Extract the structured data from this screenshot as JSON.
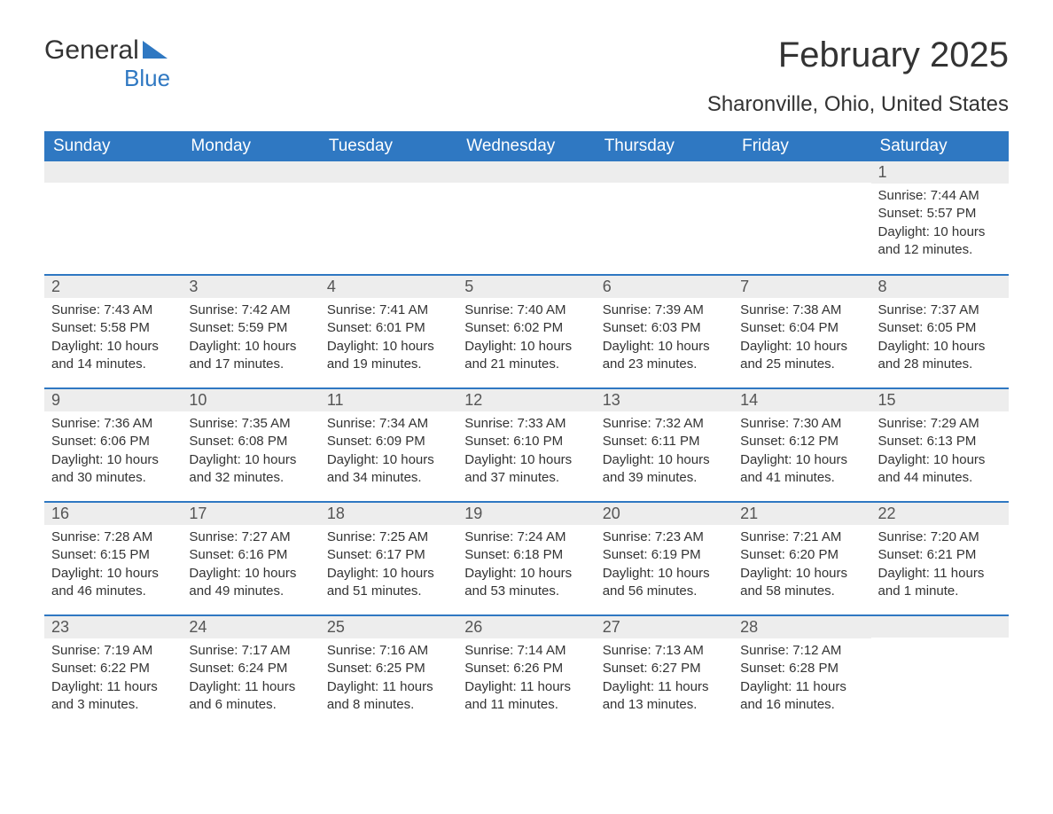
{
  "brand": {
    "part1": "General",
    "part2": "Blue"
  },
  "title": "February 2025",
  "subtitle": "Sharonville, Ohio, United States",
  "colors": {
    "header_bg": "#2f78c2",
    "header_text": "#ffffff",
    "daynum_bg": "#ededed",
    "daynum_text": "#555555",
    "body_text": "#333333",
    "rule": "#2f78c2"
  },
  "weekdays": [
    "Sunday",
    "Monday",
    "Tuesday",
    "Wednesday",
    "Thursday",
    "Friday",
    "Saturday"
  ],
  "weeks": [
    [
      {
        "day": "",
        "sunrise": "",
        "sunset": "",
        "daylight": ""
      },
      {
        "day": "",
        "sunrise": "",
        "sunset": "",
        "daylight": ""
      },
      {
        "day": "",
        "sunrise": "",
        "sunset": "",
        "daylight": ""
      },
      {
        "day": "",
        "sunrise": "",
        "sunset": "",
        "daylight": ""
      },
      {
        "day": "",
        "sunrise": "",
        "sunset": "",
        "daylight": ""
      },
      {
        "day": "",
        "sunrise": "",
        "sunset": "",
        "daylight": ""
      },
      {
        "day": "1",
        "sunrise": "Sunrise: 7:44 AM",
        "sunset": "Sunset: 5:57 PM",
        "daylight": "Daylight: 10 hours and 12 minutes."
      }
    ],
    [
      {
        "day": "2",
        "sunrise": "Sunrise: 7:43 AM",
        "sunset": "Sunset: 5:58 PM",
        "daylight": "Daylight: 10 hours and 14 minutes."
      },
      {
        "day": "3",
        "sunrise": "Sunrise: 7:42 AM",
        "sunset": "Sunset: 5:59 PM",
        "daylight": "Daylight: 10 hours and 17 minutes."
      },
      {
        "day": "4",
        "sunrise": "Sunrise: 7:41 AM",
        "sunset": "Sunset: 6:01 PM",
        "daylight": "Daylight: 10 hours and 19 minutes."
      },
      {
        "day": "5",
        "sunrise": "Sunrise: 7:40 AM",
        "sunset": "Sunset: 6:02 PM",
        "daylight": "Daylight: 10 hours and 21 minutes."
      },
      {
        "day": "6",
        "sunrise": "Sunrise: 7:39 AM",
        "sunset": "Sunset: 6:03 PM",
        "daylight": "Daylight: 10 hours and 23 minutes."
      },
      {
        "day": "7",
        "sunrise": "Sunrise: 7:38 AM",
        "sunset": "Sunset: 6:04 PM",
        "daylight": "Daylight: 10 hours and 25 minutes."
      },
      {
        "day": "8",
        "sunrise": "Sunrise: 7:37 AM",
        "sunset": "Sunset: 6:05 PM",
        "daylight": "Daylight: 10 hours and 28 minutes."
      }
    ],
    [
      {
        "day": "9",
        "sunrise": "Sunrise: 7:36 AM",
        "sunset": "Sunset: 6:06 PM",
        "daylight": "Daylight: 10 hours and 30 minutes."
      },
      {
        "day": "10",
        "sunrise": "Sunrise: 7:35 AM",
        "sunset": "Sunset: 6:08 PM",
        "daylight": "Daylight: 10 hours and 32 minutes."
      },
      {
        "day": "11",
        "sunrise": "Sunrise: 7:34 AM",
        "sunset": "Sunset: 6:09 PM",
        "daylight": "Daylight: 10 hours and 34 minutes."
      },
      {
        "day": "12",
        "sunrise": "Sunrise: 7:33 AM",
        "sunset": "Sunset: 6:10 PM",
        "daylight": "Daylight: 10 hours and 37 minutes."
      },
      {
        "day": "13",
        "sunrise": "Sunrise: 7:32 AM",
        "sunset": "Sunset: 6:11 PM",
        "daylight": "Daylight: 10 hours and 39 minutes."
      },
      {
        "day": "14",
        "sunrise": "Sunrise: 7:30 AM",
        "sunset": "Sunset: 6:12 PM",
        "daylight": "Daylight: 10 hours and 41 minutes."
      },
      {
        "day": "15",
        "sunrise": "Sunrise: 7:29 AM",
        "sunset": "Sunset: 6:13 PM",
        "daylight": "Daylight: 10 hours and 44 minutes."
      }
    ],
    [
      {
        "day": "16",
        "sunrise": "Sunrise: 7:28 AM",
        "sunset": "Sunset: 6:15 PM",
        "daylight": "Daylight: 10 hours and 46 minutes."
      },
      {
        "day": "17",
        "sunrise": "Sunrise: 7:27 AM",
        "sunset": "Sunset: 6:16 PM",
        "daylight": "Daylight: 10 hours and 49 minutes."
      },
      {
        "day": "18",
        "sunrise": "Sunrise: 7:25 AM",
        "sunset": "Sunset: 6:17 PM",
        "daylight": "Daylight: 10 hours and 51 minutes."
      },
      {
        "day": "19",
        "sunrise": "Sunrise: 7:24 AM",
        "sunset": "Sunset: 6:18 PM",
        "daylight": "Daylight: 10 hours and 53 minutes."
      },
      {
        "day": "20",
        "sunrise": "Sunrise: 7:23 AM",
        "sunset": "Sunset: 6:19 PM",
        "daylight": "Daylight: 10 hours and 56 minutes."
      },
      {
        "day": "21",
        "sunrise": "Sunrise: 7:21 AM",
        "sunset": "Sunset: 6:20 PM",
        "daylight": "Daylight: 10 hours and 58 minutes."
      },
      {
        "day": "22",
        "sunrise": "Sunrise: 7:20 AM",
        "sunset": "Sunset: 6:21 PM",
        "daylight": "Daylight: 11 hours and 1 minute."
      }
    ],
    [
      {
        "day": "23",
        "sunrise": "Sunrise: 7:19 AM",
        "sunset": "Sunset: 6:22 PM",
        "daylight": "Daylight: 11 hours and 3 minutes."
      },
      {
        "day": "24",
        "sunrise": "Sunrise: 7:17 AM",
        "sunset": "Sunset: 6:24 PM",
        "daylight": "Daylight: 11 hours and 6 minutes."
      },
      {
        "day": "25",
        "sunrise": "Sunrise: 7:16 AM",
        "sunset": "Sunset: 6:25 PM",
        "daylight": "Daylight: 11 hours and 8 minutes."
      },
      {
        "day": "26",
        "sunrise": "Sunrise: 7:14 AM",
        "sunset": "Sunset: 6:26 PM",
        "daylight": "Daylight: 11 hours and 11 minutes."
      },
      {
        "day": "27",
        "sunrise": "Sunrise: 7:13 AM",
        "sunset": "Sunset: 6:27 PM",
        "daylight": "Daylight: 11 hours and 13 minutes."
      },
      {
        "day": "28",
        "sunrise": "Sunrise: 7:12 AM",
        "sunset": "Sunset: 6:28 PM",
        "daylight": "Daylight: 11 hours and 16 minutes."
      },
      {
        "day": "",
        "sunrise": "",
        "sunset": "",
        "daylight": ""
      }
    ]
  ]
}
